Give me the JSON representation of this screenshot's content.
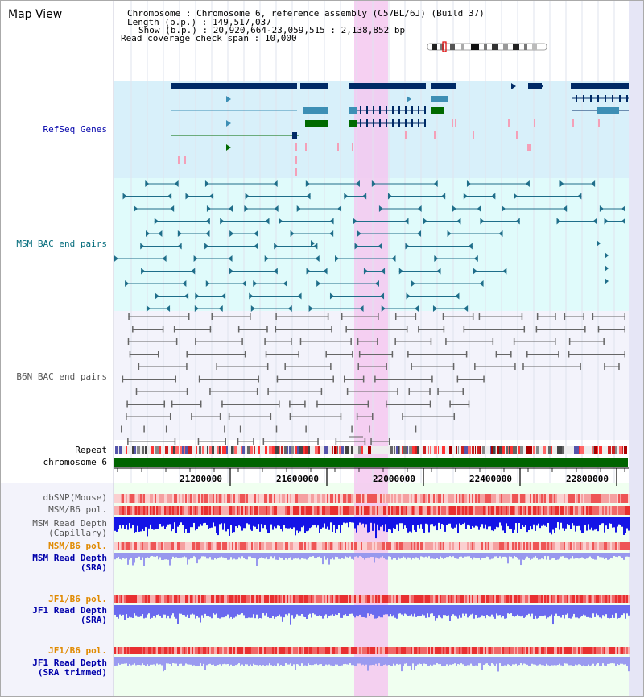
{
  "view_title": "Map View",
  "header": {
    "chromosome_label": "Chromosome",
    "chromosome_value": "Chromosome 6, reference assembly (C57BL/6J) (Build 37)",
    "length_label": "Length (b.p.)",
    "length_value": "149,517,037",
    "show_label": "Show (b.p.)",
    "show_value": "20,920,664-23,059,515 : 2,138,852 bp",
    "coverage_label": "Read coverage check span",
    "coverage_value": "10,000"
  },
  "tracks": {
    "refseq": "RefSeq Genes",
    "msm_bac": "MSM BAC end pairs",
    "b6n_bac": "B6N BAC end pairs",
    "repeat": "Repeat",
    "chromosome": "chromosome 6",
    "dbsnp": "dbSNP(Mouse)",
    "msm_b6_pol": "MSM/B6 pol.",
    "msm_read_depth_cap_1": "MSM Read Depth",
    "msm_read_depth_cap_2": "(Capillary)",
    "msm_b6_pol_sra": "MSM/B6 pol.",
    "msm_read_depth_sra_1": "MSM Read Depth",
    "msm_read_depth_sra_2": "(SRA)",
    "jf1_b6_pol": "JF1/B6 pol.",
    "jf1_read_depth_1": "JF1 Read Depth",
    "jf1_read_depth_2": "(SRA)",
    "jf1_b6_pol_trim": "JF1/B6 pol.",
    "jf1_read_depth_trim_1": "JF1 Read Depth",
    "jf1_read_depth_trim_2": "(SRA trimmed)"
  },
  "axis_ticks": [
    "21200000",
    "21600000",
    "22000000",
    "22400000",
    "22800000"
  ],
  "colors": {
    "refseq_bg": "#d8f0fa",
    "msm_bac_bg": "#e0fbfb",
    "b6n_bac_bg": "#f3f3fb",
    "highlight": "#f4c8f0",
    "gene_dark": "#002a66",
    "gene_light": "#3d8fb5",
    "gene_green": "#006a00",
    "chrom_green": "#006400",
    "label_blue": "#0000aa",
    "label_teal": "#006a7a",
    "label_gray": "#555555",
    "label_orange": "#e08a00"
  }
}
